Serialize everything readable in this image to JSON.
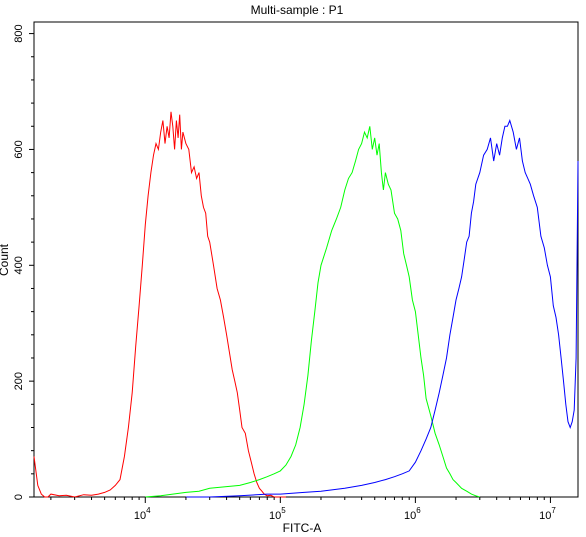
{
  "chart_data": {
    "type": "line",
    "title": "Multi-sample : P1",
    "xlabel": "FITC-A",
    "ylabel": "Count",
    "x_scale": "log",
    "xlim": [
      1500,
      16000000
    ],
    "ylim": [
      0,
      820
    ],
    "y_ticks": [
      0,
      200,
      400,
      600,
      800
    ],
    "x_ticks": [
      {
        "value": 10000,
        "base": "10",
        "exp": "4"
      },
      {
        "value": 100000,
        "base": "10",
        "exp": "5"
      },
      {
        "value": 1000000,
        "base": "10",
        "exp": "6"
      },
      {
        "value": 10000000,
        "base": "10",
        "exp": "7"
      }
    ],
    "grid": false,
    "legend": "none",
    "series": [
      {
        "color": "#ff0000",
        "x": [
          1500,
          1600,
          1700,
          1800,
          1900,
          2000,
          2300,
          2600,
          3000,
          3500,
          4000,
          4500,
          5000,
          5500,
          6000,
          6500,
          7000,
          7500,
          8000,
          8500,
          9000,
          9500,
          10000,
          10500,
          11000,
          11500,
          12000,
          12500,
          13000,
          13500,
          14000,
          14500,
          15000,
          15500,
          16000,
          16500,
          17000,
          17500,
          18000,
          18500,
          19000,
          19500,
          20000,
          21000,
          22000,
          23000,
          24000,
          25000,
          26000,
          27000,
          28000,
          29000,
          30000,
          32000,
          34000,
          36000,
          38000,
          40000,
          42000,
          44000,
          46000,
          48000,
          50000,
          52000,
          55000,
          58000,
          61000,
          64000,
          67000,
          70000,
          73000,
          76000,
          80000,
          85000,
          90000,
          95000,
          100000,
          105000,
          110000
        ],
        "y": [
          70,
          20,
          5,
          0,
          0,
          5,
          2,
          3,
          0,
          4,
          3,
          5,
          8,
          12,
          20,
          30,
          70,
          120,
          180,
          260,
          330,
          400,
          470,
          520,
          560,
          590,
          610,
          600,
          630,
          650,
          610,
          640,
          620,
          665,
          640,
          600,
          650,
          620,
          660,
          600,
          630,
          620,
          610,
          600,
          560,
          570,
          550,
          560,
          520,
          500,
          490,
          450,
          440,
          400,
          360,
          340,
          310,
          280,
          250,
          220,
          200,
          180,
          150,
          120,
          110,
          80,
          60,
          40,
          25,
          15,
          10,
          5,
          2,
          3,
          0,
          0,
          0,
          0,
          0
        ]
      },
      {
        "color": "#00ff00",
        "x": [
          10000,
          13000,
          16000,
          20000,
          25000,
          30000,
          40000,
          50000,
          60000,
          70000,
          80000,
          90000,
          100000,
          110000,
          120000,
          130000,
          140000,
          150000,
          160000,
          170000,
          180000,
          190000,
          200000,
          220000,
          240000,
          260000,
          280000,
          300000,
          320000,
          340000,
          360000,
          380000,
          400000,
          420000,
          440000,
          460000,
          480000,
          500000,
          520000,
          540000,
          560000,
          580000,
          600000,
          630000,
          660000,
          700000,
          740000,
          780000,
          820000,
          860000,
          900000,
          950000,
          1000000,
          1050000,
          1100000,
          1150000,
          1200000,
          1300000,
          1400000,
          1500000,
          1600000,
          1700000,
          1800000,
          1900000,
          2000000,
          2200000,
          2400000,
          2600000,
          2800000,
          3000000
        ],
        "y": [
          0,
          2,
          5,
          8,
          10,
          15,
          18,
          20,
          25,
          30,
          35,
          40,
          45,
          55,
          70,
          90,
          120,
          160,
          210,
          270,
          320,
          370,
          400,
          430,
          460,
          480,
          500,
          530,
          550,
          560,
          580,
          600,
          610,
          630,
          620,
          640,
          600,
          620,
          590,
          610,
          560,
          530,
          560,
          540,
          530,
          490,
          480,
          460,
          420,
          400,
          380,
          340,
          320,
          280,
          240,
          210,
          170,
          140,
          110,
          90,
          70,
          50,
          40,
          30,
          25,
          15,
          10,
          5,
          2,
          0
        ]
      },
      {
        "color": "#0000ff",
        "x": [
          20000,
          30000,
          50000,
          80000,
          100000,
          150000,
          200000,
          300000,
          400000,
          500000,
          600000,
          700000,
          800000,
          900000,
          1000000,
          1100000,
          1200000,
          1300000,
          1400000,
          1500000,
          1600000,
          1700000,
          1800000,
          1900000,
          2000000,
          2100000,
          2200000,
          2300000,
          2400000,
          2500000,
          2600000,
          2700000,
          2800000,
          3000000,
          3200000,
          3400000,
          3600000,
          3800000,
          4000000,
          4200000,
          4400000,
          4600000,
          4800000,
          5000000,
          5300000,
          5600000,
          5900000,
          6200000,
          6500000,
          6800000,
          7100000,
          7500000,
          8000000,
          8500000,
          9000000,
          9500000,
          10000000,
          10500000,
          11000000,
          11500000,
          12000000,
          12500000,
          13000000,
          13500000,
          14000000,
          14500000,
          15000000,
          15500000,
          16000000
        ],
        "y": [
          0,
          0,
          2,
          5,
          5,
          8,
          10,
          15,
          20,
          25,
          30,
          35,
          40,
          45,
          60,
          80,
          100,
          120,
          150,
          180,
          210,
          240,
          280,
          310,
          340,
          360,
          380,
          410,
          440,
          450,
          490,
          510,
          540,
          560,
          590,
          600,
          620,
          580,
          610,
          590,
          620,
          640,
          640,
          650,
          630,
          600,
          620,
          580,
          560,
          550,
          540,
          520,
          500,
          450,
          430,
          400,
          380,
          330,
          310,
          280,
          240,
          200,
          160,
          130,
          120,
          130,
          150,
          240,
          580
        ]
      }
    ]
  }
}
